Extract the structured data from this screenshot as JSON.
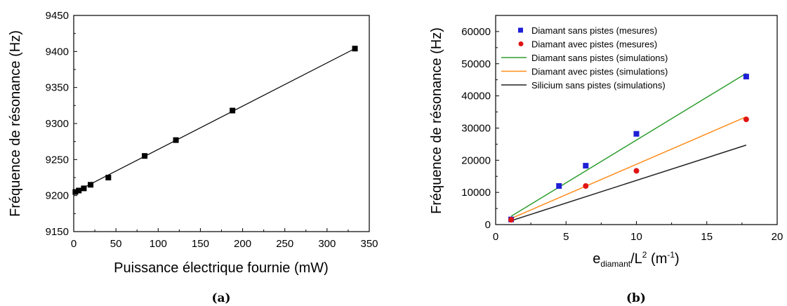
{
  "chart_data": [
    {
      "type": "scatter",
      "caption": "(a)",
      "xlabel": "Puissance électrique fournie (mW)",
      "ylabel": "Fréquence de résonance (Hz)",
      "xlim": [
        0,
        350
      ],
      "ylim": [
        9150,
        9450
      ],
      "xticks": [
        "0",
        "50",
        "100",
        "150",
        "200",
        "250",
        "300",
        "350"
      ],
      "yticks": [
        "9150",
        "9200",
        "9250",
        "9300",
        "9350",
        "9400",
        "9450"
      ],
      "grid": false,
      "series": [
        {
          "marker": "square",
          "color": "#000000",
          "points": [
            {
              "x": 2,
              "y": 9205
            },
            {
              "x": 6,
              "y": 9207
            },
            {
              "x": 12,
              "y": 9210
            },
            {
              "x": 20,
              "y": 9215
            },
            {
              "x": 41,
              "y": 9225
            },
            {
              "x": 84,
              "y": 9255
            },
            {
              "x": 121,
              "y": 9277
            },
            {
              "x": 188,
              "y": 9318
            },
            {
              "x": 333,
              "y": 9404
            }
          ]
        }
      ],
      "fit_lines": [
        {
          "color": "#000000",
          "points": [
            {
              "x": 0,
              "y": 9204
            },
            {
              "x": 333,
              "y": 9404
            }
          ]
        }
      ]
    },
    {
      "type": "scatter",
      "caption": "(b)",
      "xlabel_main": "e",
      "xlabel_sub": "diamant",
      "xlabel_mid": "/L",
      "xlabel_sup": "2",
      "xlabel_unit": " (m",
      "xlabel_unit_sup": "-1",
      "xlabel_end": ")",
      "ylabel": "Fréquence de résonance (Hz)",
      "xlim": [
        0,
        20
      ],
      "ylim": [
        0,
        65000
      ],
      "xticks": [
        "0",
        "5",
        "10",
        "15",
        "20"
      ],
      "yticks": [
        "0",
        "10000",
        "20000",
        "30000",
        "40000",
        "50000",
        "60000"
      ],
      "grid": false,
      "legend_position": "top-left",
      "series": [
        {
          "name": "Diamant sans pistes (mesures)",
          "kind": "points",
          "marker": "square",
          "color": "#1f1fd6",
          "points": [
            {
              "x": 1.1,
              "y": 1600
            },
            {
              "x": 4.5,
              "y": 12000
            },
            {
              "x": 6.4,
              "y": 18300
            },
            {
              "x": 10,
              "y": 28200
            },
            {
              "x": 17.8,
              "y": 46000
            }
          ]
        },
        {
          "name": "Diamant avec pistes (mesures)",
          "kind": "points",
          "marker": "circle",
          "color": "#e01414",
          "points": [
            {
              "x": 1.1,
              "y": 1500
            },
            {
              "x": 6.4,
              "y": 12000
            },
            {
              "x": 10,
              "y": 16700
            },
            {
              "x": 17.8,
              "y": 32700
            }
          ]
        },
        {
          "name": "Diamant sans pistes (simulations)",
          "kind": "line",
          "color": "#2e9e2e",
          "points": [
            {
              "x": 1.1,
              "y": 2600
            },
            {
              "x": 17.8,
              "y": 47000
            }
          ]
        },
        {
          "name": "Diamant avec pistes (simulations)",
          "kind": "line",
          "color": "#ff8c1a",
          "points": [
            {
              "x": 1.1,
              "y": 1900
            },
            {
              "x": 17.8,
              "y": 33500
            }
          ]
        },
        {
          "name": "Silicium sans pistes (simulations)",
          "kind": "line",
          "color": "#222222",
          "points": [
            {
              "x": 1.1,
              "y": 1200
            },
            {
              "x": 17.8,
              "y": 24700
            }
          ]
        }
      ]
    }
  ]
}
